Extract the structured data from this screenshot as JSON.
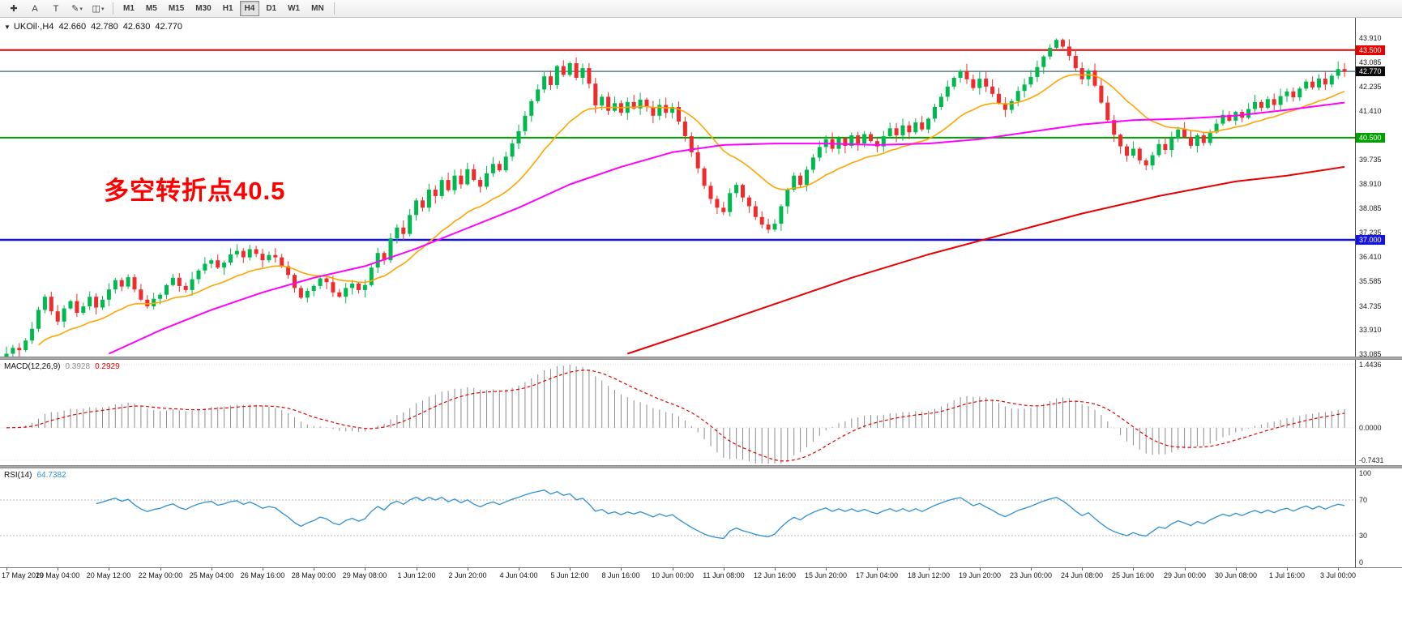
{
  "toolbar": {
    "tools": [
      {
        "name": "crosshair-button",
        "icon": "crosshair-icon",
        "glyph": "✚",
        "caret": false
      },
      {
        "name": "text-label-button",
        "icon": "label-a-icon",
        "glyph": "A",
        "caret": false
      },
      {
        "name": "text-box-button",
        "icon": "text-box-icon",
        "glyph": "T",
        "caret": false
      },
      {
        "name": "draw-tools-button",
        "icon": "pencil-icon",
        "glyph": "✎",
        "caret": true
      },
      {
        "name": "shapes-button",
        "icon": "shapes-icon",
        "glyph": "◫",
        "caret": true
      }
    ],
    "timeframes": [
      "M1",
      "M5",
      "M15",
      "M30",
      "H1",
      "H4",
      "D1",
      "W1",
      "MN"
    ],
    "active_timeframe": "H4"
  },
  "chart": {
    "quote": {
      "symbol": "UKOil·,H4",
      "open": "42.660",
      "high": "42.780",
      "low": "42.630",
      "close": "42.770"
    },
    "annotation": {
      "text": "多空转折点40.5",
      "color": "#FF0000"
    },
    "levels": [
      {
        "name": "resistance-line",
        "price": 43.5,
        "label": "43.500",
        "color": "#E60000",
        "badge": "#E60000",
        "width": 2
      },
      {
        "name": "current-price",
        "price": 42.77,
        "label": "42.770",
        "color": "#5A7E8C",
        "badge": "#0A0A0A",
        "width": 1.5
      },
      {
        "name": "pivot-line",
        "price": 40.5,
        "label": "40.500",
        "color": "#00A000",
        "badge": "#00A000",
        "width": 2
      },
      {
        "name": "support-line",
        "price": 37.0,
        "label": "37.000",
        "color": "#1414E0",
        "badge": "#1414E0",
        "width": 2.5
      }
    ],
    "axis_ticks": [
      "43.910",
      "43.085",
      "42.235",
      "41.410",
      "39.735",
      "38.910",
      "38.085",
      "37.235",
      "36.410",
      "35.585",
      "34.735",
      "33.910",
      "33.085"
    ],
    "colors": {
      "candle_up": "#00B94E",
      "candle_down": "#EF2B2B",
      "macd_hist": "#8C8C8C",
      "macd_signal": "#E00000",
      "rsi_line": "#2E8FD5"
    }
  },
  "chart_data": {
    "type": "candlestick",
    "symbol": "UKOil",
    "timeframe": "H4",
    "visible_price_range": [
      33.085,
      44.6
    ],
    "closes": [
      33.1,
      33.3,
      33.22,
      33.55,
      33.95,
      34.6,
      35.05,
      34.55,
      34.2,
      34.65,
      34.9,
      34.5,
      34.72,
      35.05,
      34.68,
      34.95,
      35.3,
      35.62,
      35.4,
      35.72,
      35.3,
      34.95,
      34.72,
      34.98,
      35.12,
      35.45,
      35.7,
      35.42,
      35.28,
      35.65,
      35.95,
      36.18,
      36.3,
      36.05,
      36.22,
      36.5,
      36.62,
      36.4,
      36.68,
      36.52,
      36.3,
      36.48,
      36.4,
      36.1,
      35.8,
      35.35,
      35.02,
      35.25,
      35.42,
      35.68,
      35.55,
      35.2,
      35.05,
      35.35,
      35.5,
      35.28,
      35.45,
      36.05,
      36.55,
      36.3,
      37.05,
      37.42,
      37.2,
      37.85,
      38.35,
      38.1,
      38.72,
      38.5,
      39.05,
      38.7,
      39.2,
      38.9,
      39.42,
      39.05,
      38.82,
      39.28,
      39.6,
      39.38,
      39.85,
      40.3,
      40.72,
      41.25,
      41.75,
      42.15,
      42.6,
      42.3,
      42.95,
      42.65,
      43.05,
      42.55,
      42.88,
      42.35,
      41.6,
      41.9,
      41.42,
      41.68,
      41.35,
      41.72,
      41.5,
      41.8,
      41.55,
      41.25,
      41.62,
      41.35,
      41.55,
      41.05,
      40.55,
      40.0,
      39.45,
      38.85,
      38.4,
      38.1,
      37.95,
      38.6,
      38.88,
      38.45,
      38.15,
      37.78,
      37.52,
      37.35,
      37.55,
      38.15,
      38.72,
      39.2,
      38.88,
      39.4,
      39.82,
      40.18,
      40.45,
      40.12,
      40.48,
      40.22,
      40.58,
      40.3,
      40.62,
      40.38,
      40.2,
      40.55,
      40.82,
      40.58,
      40.92,
      40.68,
      41.02,
      40.78,
      41.15,
      41.55,
      41.9,
      42.25,
      42.55,
      42.78,
      42.5,
      42.2,
      42.52,
      42.25,
      42.0,
      41.68,
      41.45,
      41.75,
      42.1,
      42.32,
      42.58,
      42.92,
      43.28,
      43.58,
      43.85,
      43.62,
      43.3,
      42.88,
      42.5,
      42.8,
      42.28,
      41.7,
      41.1,
      40.6,
      40.2,
      39.88,
      40.12,
      39.72,
      39.55,
      39.9,
      40.28,
      40.08,
      40.48,
      40.78,
      40.52,
      40.22,
      40.58,
      40.32,
      40.68,
      40.98,
      41.28,
      41.08,
      41.38,
      41.18,
      41.48,
      41.72,
      41.52,
      41.82,
      41.62,
      41.92,
      42.08,
      41.88,
      42.18,
      42.42,
      42.22,
      42.52,
      42.32,
      42.62,
      42.85,
      42.77
    ],
    "time_labels": [
      "17 May 2020",
      "19 May 04:00",
      "20 May 12:00",
      "22 May 00:00",
      "25 May 04:00",
      "26 May 16:00",
      "28 May 00:00",
      "29 May 08:00",
      "1 Jun 12:00",
      "2 Jun 20:00",
      "4 Jun 04:00",
      "5 Jun 12:00",
      "8 Jun 16:00",
      "10 Jun 00:00",
      "11 Jun 08:00",
      "12 Jun 16:00",
      "15 Jun 20:00",
      "17 Jun 04:00",
      "18 Jun 12:00",
      "19 Jun 20:00",
      "23 Jun 00:00",
      "24 Jun 08:00",
      "25 Jun 16:00",
      "29 Jun 00:00",
      "30 Jun 08:00",
      "1 Jul 16:00",
      "3 Jul 00:00"
    ],
    "moving_averages": {
      "orange": {
        "period": 18,
        "color": "#FFA500"
      },
      "magenta": {
        "color": "#FF00FF",
        "anchors": [
          [
            16,
            33.1
          ],
          [
            24,
            33.9
          ],
          [
            32,
            34.6
          ],
          [
            40,
            35.2
          ],
          [
            48,
            35.7
          ],
          [
            56,
            36.1
          ],
          [
            64,
            36.7
          ],
          [
            72,
            37.4
          ],
          [
            80,
            38.1
          ],
          [
            88,
            38.9
          ],
          [
            96,
            39.5
          ],
          [
            104,
            40.0
          ],
          [
            112,
            40.25
          ],
          [
            120,
            40.3
          ],
          [
            128,
            40.3
          ],
          [
            136,
            40.25
          ],
          [
            144,
            40.3
          ],
          [
            152,
            40.45
          ],
          [
            160,
            40.7
          ],
          [
            168,
            40.95
          ],
          [
            176,
            41.1
          ],
          [
            184,
            41.15
          ],
          [
            192,
            41.25
          ],
          [
            200,
            41.45
          ],
          [
            209,
            41.7
          ]
        ]
      },
      "red": {
        "color": "#E80000",
        "anchors": [
          [
            97,
            33.1
          ],
          [
            108,
            33.9
          ],
          [
            120,
            34.8
          ],
          [
            132,
            35.7
          ],
          [
            144,
            36.5
          ],
          [
            156,
            37.2
          ],
          [
            168,
            37.9
          ],
          [
            180,
            38.5
          ],
          [
            192,
            39.0
          ],
          [
            200,
            39.2
          ],
          [
            209,
            39.5
          ]
        ]
      }
    }
  },
  "macd": {
    "label": "MACD(12,26,9)",
    "value_main": "0.3928",
    "value_signal": "0.2929",
    "params": {
      "fast": 12,
      "slow": 26,
      "signal": 9
    },
    "axis": [
      "1.4436",
      "0.0000",
      "-0.7431"
    ],
    "range": {
      "max": 1.4436,
      "min": -0.7431
    }
  },
  "rsi": {
    "label": "RSI(14)",
    "value": "64.7382",
    "period": 14,
    "levels": [
      70,
      30
    ],
    "axis": [
      "100",
      "70",
      "30",
      "0"
    ]
  }
}
